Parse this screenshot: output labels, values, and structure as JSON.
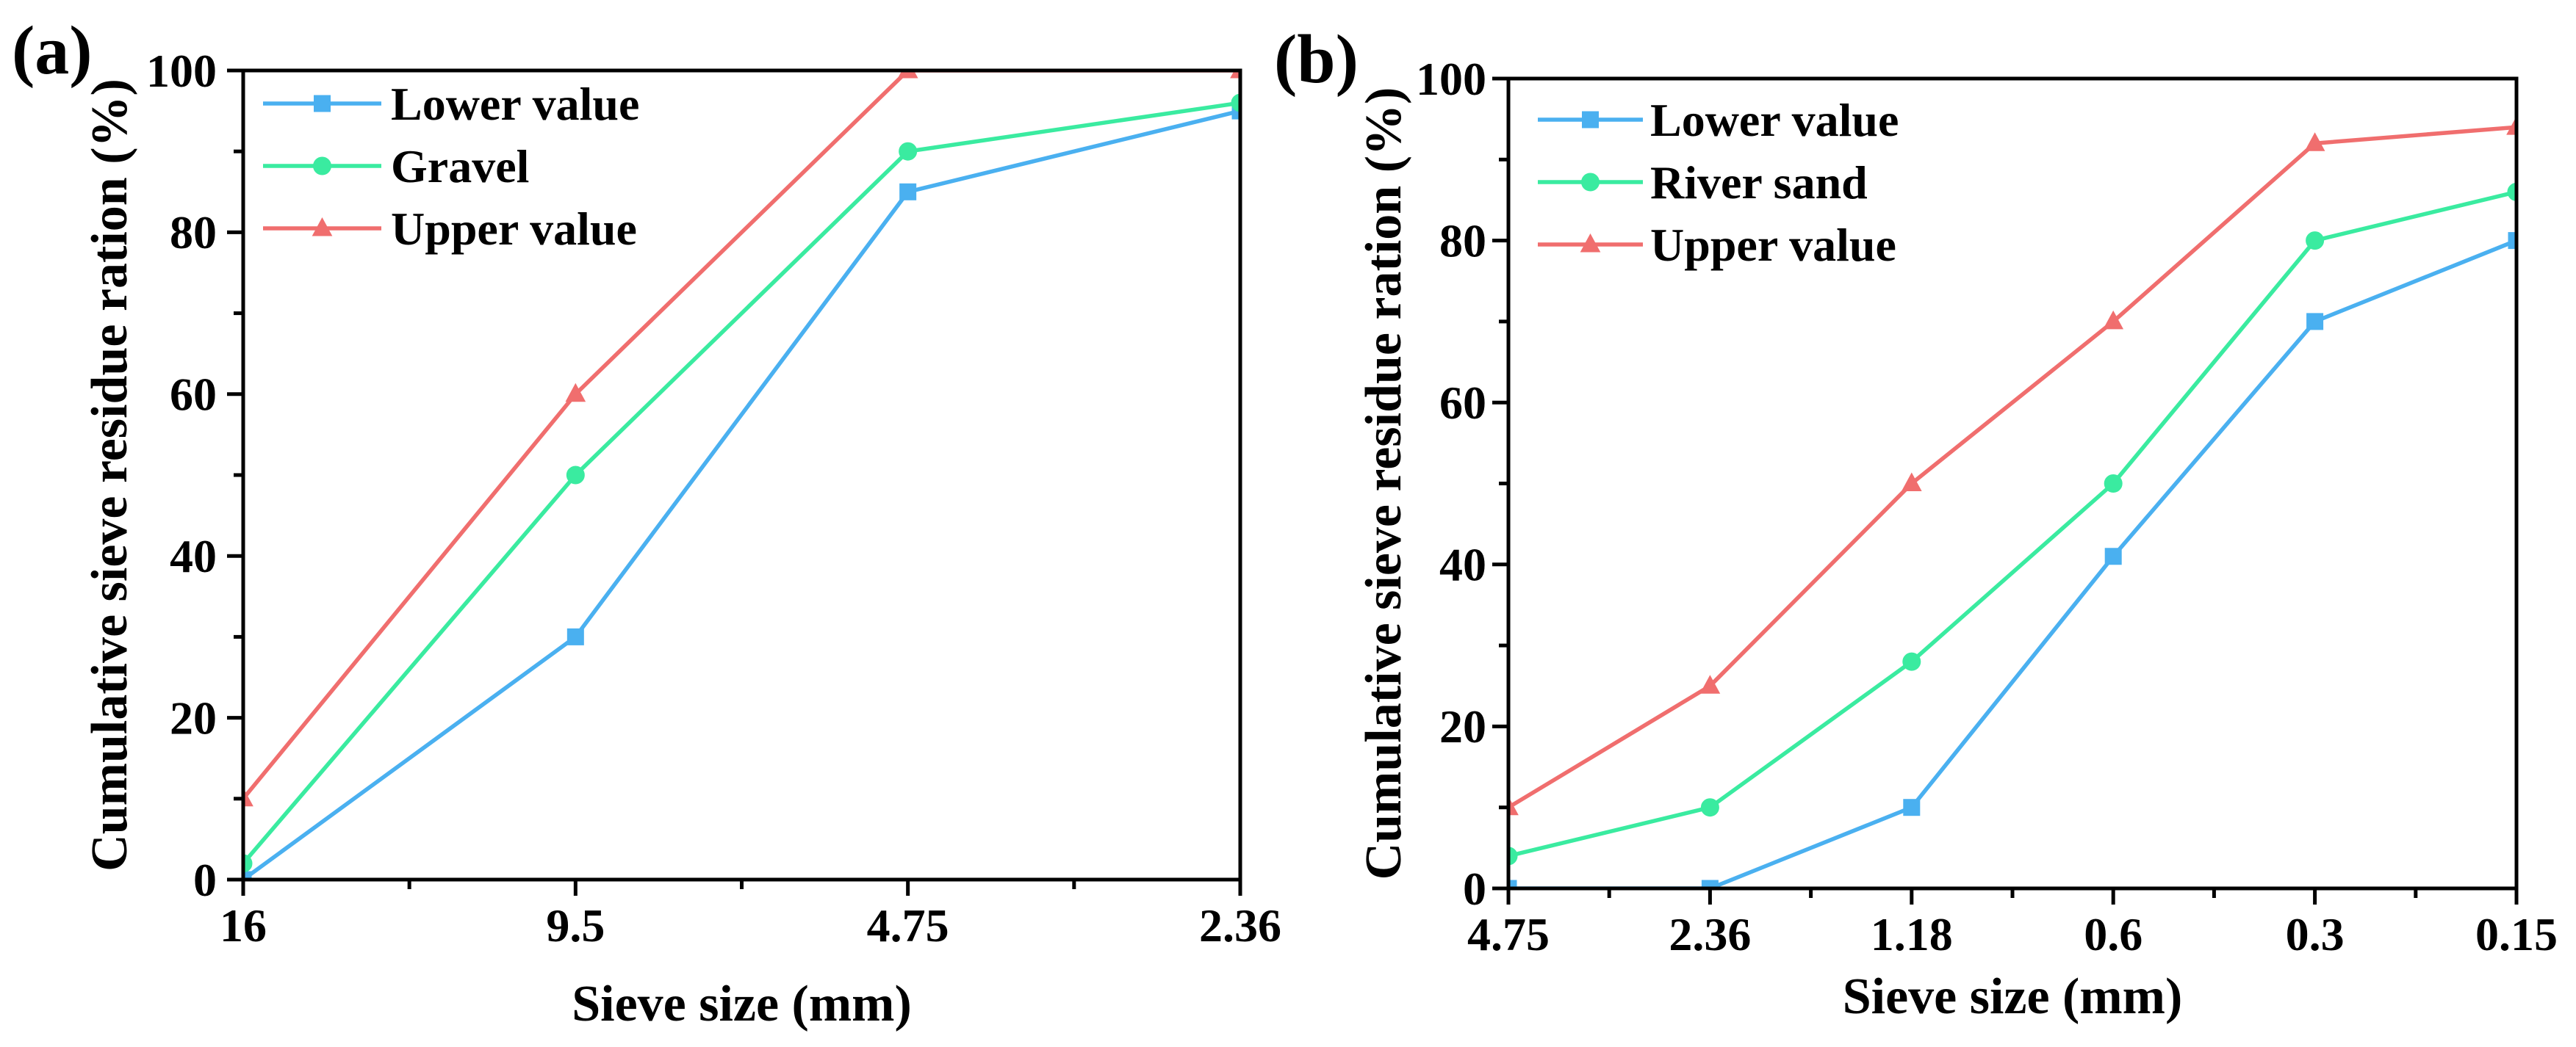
{
  "chart_data": [
    {
      "type": "line",
      "panel_label": "(a)",
      "xlabel": "Sieve size (mm)",
      "ylabel": "Cumulative sieve residue ration (%)",
      "categories": [
        "16",
        "9.5",
        "4.75",
        "2.36"
      ],
      "ylim": [
        0,
        100
      ],
      "yticks": [
        0,
        20,
        40,
        60,
        80,
        100
      ],
      "grid": false,
      "legend_position": "top-left",
      "series": [
        {
          "name": "Lower value",
          "marker": "square",
          "color": "#4AB0F0",
          "values": [
            0,
            30,
            85,
            95
          ]
        },
        {
          "name": "Gravel",
          "marker": "circle",
          "color": "#3AEBA0",
          "values": [
            2,
            50,
            90,
            96
          ]
        },
        {
          "name": "Upper value",
          "marker": "triangle",
          "color": "#F06E6E",
          "values": [
            10,
            60,
            100,
            100
          ]
        }
      ]
    },
    {
      "type": "line",
      "panel_label": "(b)",
      "xlabel": "Sieve size (mm)",
      "ylabel": "Cumulative sieve residue ration (%)",
      "categories": [
        "4.75",
        "2.36",
        "1.18",
        "0.6",
        "0.3",
        "0.15"
      ],
      "ylim": [
        0,
        100
      ],
      "yticks": [
        0,
        20,
        40,
        60,
        80,
        100
      ],
      "grid": false,
      "legend_position": "top-left",
      "series": [
        {
          "name": "Lower value",
          "marker": "square",
          "color": "#4AB0F0",
          "values": [
            0,
            0,
            10,
            41,
            70,
            80
          ]
        },
        {
          "name": "River sand",
          "marker": "circle",
          "color": "#3AEBA0",
          "values": [
            4,
            10,
            28,
            50,
            80,
            86
          ]
        },
        {
          "name": "Upper value",
          "marker": "triangle",
          "color": "#F06E6E",
          "values": [
            10,
            25,
            50,
            70,
            92,
            94
          ]
        }
      ]
    }
  ]
}
